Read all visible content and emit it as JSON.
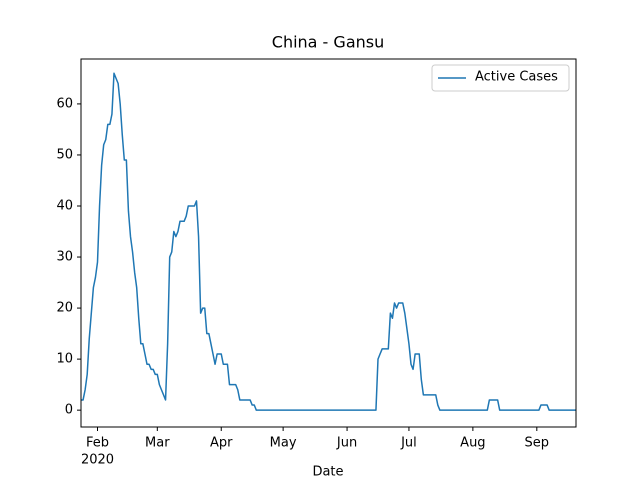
{
  "chart_data": {
    "type": "line",
    "title": "China - Gansu",
    "xlabel": "Date",
    "year": "2020",
    "xlim": [
      0,
      240
    ],
    "ylim": [
      -3.3,
      68.8
    ],
    "xticks": [
      {
        "value": 8,
        "label": "Feb"
      },
      {
        "value": 37,
        "label": "Mar"
      },
      {
        "value": 68,
        "label": "Apr"
      },
      {
        "value": 98,
        "label": "May"
      },
      {
        "value": 129,
        "label": "Jun"
      },
      {
        "value": 159,
        "label": "Jul"
      },
      {
        "value": 190,
        "label": "Aug"
      },
      {
        "value": 221,
        "label": "Sep"
      }
    ],
    "yticks": [
      0,
      10,
      20,
      30,
      40,
      50,
      60
    ],
    "legend": "upper right",
    "series": [
      {
        "name": "Active Cases",
        "color": "#1f77b4",
        "values": [
          2,
          2,
          4,
          7,
          14,
          19,
          24,
          26,
          29,
          40,
          48,
          52,
          53,
          56,
          56,
          58,
          66,
          65,
          64,
          60,
          54,
          49,
          49,
          39,
          34,
          31,
          27,
          24,
          18,
          13,
          13,
          11,
          9,
          9,
          8,
          8,
          7,
          7,
          5,
          4,
          3,
          2,
          13,
          30,
          31,
          35,
          34,
          35,
          37,
          37,
          37,
          38,
          40,
          40,
          40,
          40,
          41,
          34,
          19,
          20,
          20,
          15,
          15,
          13,
          11,
          9,
          11,
          11,
          11,
          9,
          9,
          9,
          5,
          5,
          5,
          5,
          4,
          2,
          2,
          2,
          2,
          2,
          2,
          1,
          1,
          0,
          0,
          0,
          0,
          0,
          0,
          0,
          0,
          0,
          0,
          0,
          0,
          0,
          0,
          0,
          0,
          0,
          0,
          0,
          0,
          0,
          0,
          0,
          0,
          0,
          0,
          0,
          0,
          0,
          0,
          0,
          0,
          0,
          0,
          0,
          0,
          0,
          0,
          0,
          0,
          0,
          0,
          0,
          0,
          0,
          0,
          0,
          0,
          0,
          0,
          0,
          0,
          0,
          0,
          0,
          0,
          0,
          0,
          0,
          10,
          11,
          12,
          12,
          12,
          12,
          19,
          18,
          21,
          20,
          21,
          21,
          21,
          19,
          16,
          13,
          9,
          8,
          11,
          11,
          11,
          6,
          3,
          3,
          3,
          3,
          3,
          3,
          3,
          1,
          0,
          0,
          0,
          0,
          0,
          0,
          0,
          0,
          0,
          0,
          0,
          0,
          0,
          0,
          0,
          0,
          0,
          0,
          0,
          0,
          0,
          0,
          0,
          0,
          2,
          2,
          2,
          2,
          2,
          0,
          0,
          0,
          0,
          0,
          0,
          0,
          0,
          0,
          0,
          0,
          0,
          0,
          0,
          0,
          0,
          0,
          0,
          0,
          0,
          1,
          1,
          1,
          1,
          0,
          0,
          0,
          0,
          0,
          0,
          0,
          0,
          0,
          0,
          0,
          0,
          0,
          0
        ]
      }
    ]
  }
}
